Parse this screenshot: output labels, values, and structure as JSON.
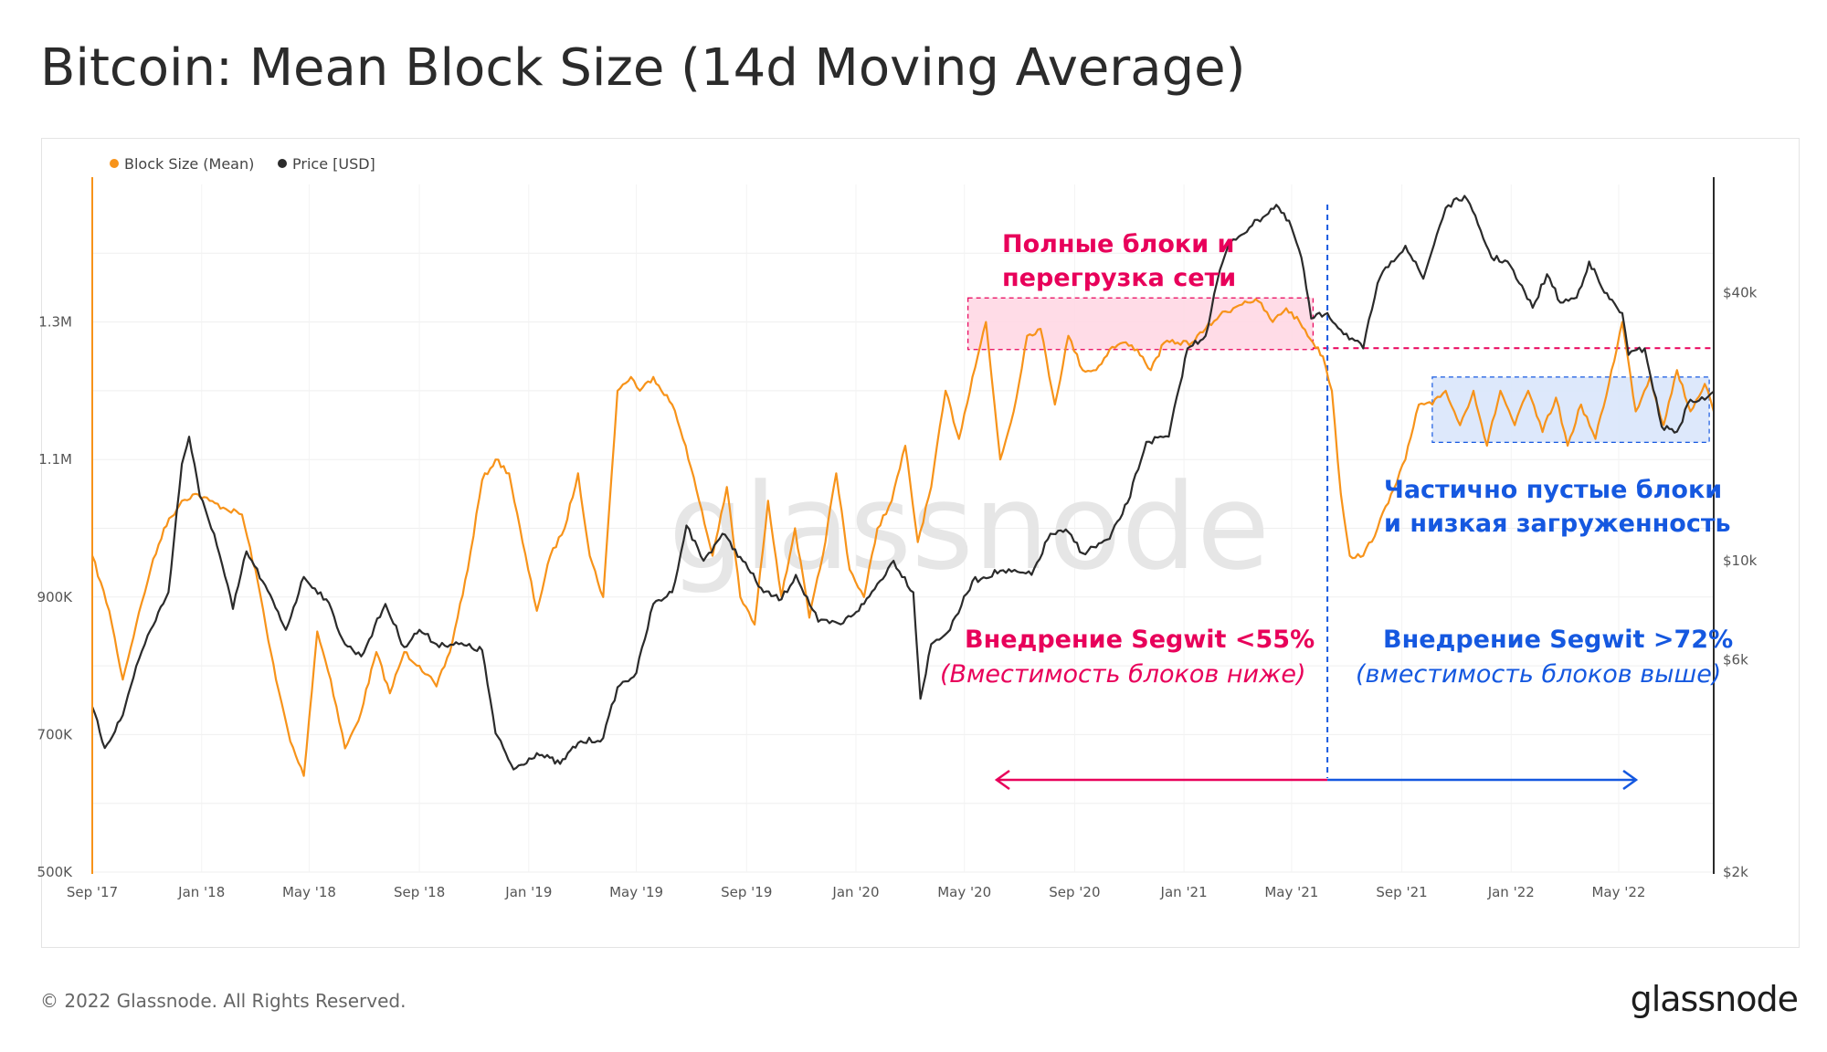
{
  "title": "Bitcoin: Mean Block Size (14d Moving Average)",
  "footer": {
    "copyright": "© 2022 Glassnode. All Rights Reserved.",
    "logo": "glassnode"
  },
  "watermark": "glassnode",
  "colors": {
    "block_size": "#f7931a",
    "price": "#2b2b2b",
    "pink": "#e8005a",
    "blue": "#1558e0",
    "pink_fill": "#ffd6e3",
    "blue_fill": "#d9e6fb"
  },
  "chart_data": {
    "type": "line",
    "legend": [
      "Block Size (Mean)",
      "Price [USD]"
    ],
    "legend_position": "top-left",
    "grid": true,
    "x_ticks": [
      "Sep '17",
      "Jan '18",
      "May '18",
      "Sep '18",
      "Jan '19",
      "May '19",
      "Sep '19",
      "Jan '20",
      "May '20",
      "Sep '20",
      "Jan '21",
      "May '21",
      "Sep '21",
      "Jan '22",
      "May '22"
    ],
    "x_range": [
      "2017-09-01",
      "2022-08-15"
    ],
    "y_left": {
      "ticks": [
        "500K",
        "700K",
        "900K",
        "1.1M",
        "1.3M"
      ],
      "values": [
        500000,
        700000,
        900000,
        1100000,
        1300000
      ],
      "range": [
        500000,
        1500000
      ]
    },
    "y_right": {
      "scale": "log",
      "ticks": [
        "$2k",
        "$6k",
        "$10k",
        "$40k"
      ],
      "values": [
        2000,
        6000,
        10000,
        40000
      ],
      "range": [
        2000,
        70000
      ]
    },
    "series": [
      {
        "name": "Block Size (Mean)",
        "axis": "left",
        "x": [
          "2017-09-01",
          "2017-09-20",
          "2017-10-05",
          "2017-10-20",
          "2017-11-05",
          "2017-11-20",
          "2017-12-10",
          "2017-12-25",
          "2018-01-10",
          "2018-01-25",
          "2018-02-15",
          "2018-03-05",
          "2018-03-25",
          "2018-04-10",
          "2018-04-25",
          "2018-05-10",
          "2018-05-25",
          "2018-06-10",
          "2018-06-25",
          "2018-07-15",
          "2018-07-30",
          "2018-08-15",
          "2018-09-01",
          "2018-09-20",
          "2018-10-05",
          "2018-10-25",
          "2018-11-10",
          "2018-11-25",
          "2018-12-10",
          "2018-12-25",
          "2019-01-10",
          "2019-01-25",
          "2019-02-10",
          "2019-02-25",
          "2019-03-10",
          "2019-03-25",
          "2019-04-10",
          "2019-04-25",
          "2019-05-05",
          "2019-05-20",
          "2019-06-10",
          "2019-06-25",
          "2019-07-10",
          "2019-07-25",
          "2019-08-10",
          "2019-08-25",
          "2019-09-10",
          "2019-09-25",
          "2019-10-10",
          "2019-10-25",
          "2019-11-10",
          "2019-11-25",
          "2019-12-10",
          "2019-12-25",
          "2020-01-10",
          "2020-01-25",
          "2020-02-10",
          "2020-02-25",
          "2020-03-10",
          "2020-03-25",
          "2020-04-10",
          "2020-04-25",
          "2020-05-10",
          "2020-05-25",
          "2020-06-10",
          "2020-06-25",
          "2020-07-10",
          "2020-07-25",
          "2020-08-10",
          "2020-08-25",
          "2020-09-10",
          "2020-09-25",
          "2020-10-10",
          "2020-10-25",
          "2020-11-10",
          "2020-11-25",
          "2020-12-10",
          "2020-12-25",
          "2021-01-10",
          "2021-01-25",
          "2021-02-10",
          "2021-02-25",
          "2021-03-10",
          "2021-03-25",
          "2021-04-10",
          "2021-04-25",
          "2021-05-10",
          "2021-05-25",
          "2021-06-05",
          "2021-06-15",
          "2021-06-25",
          "2021-07-05",
          "2021-07-20",
          "2021-08-05",
          "2021-08-20",
          "2021-09-05",
          "2021-09-20",
          "2021-10-05",
          "2021-10-20",
          "2021-11-05",
          "2021-11-20",
          "2021-12-05",
          "2021-12-20",
          "2022-01-05",
          "2022-01-20",
          "2022-02-05",
          "2022-02-20",
          "2022-03-05",
          "2022-03-20",
          "2022-04-05",
          "2022-04-20",
          "2022-05-05",
          "2022-05-20",
          "2022-06-05",
          "2022-06-20",
          "2022-07-05",
          "2022-07-20",
          "2022-08-05",
          "2022-08-15"
        ],
        "values": [
          960000,
          880000,
          780000,
          860000,
          940000,
          1000000,
          1040000,
          1050000,
          1040000,
          1030000,
          1020000,
          920000,
          780000,
          690000,
          640000,
          850000,
          780000,
          680000,
          720000,
          820000,
          760000,
          820000,
          800000,
          770000,
          820000,
          940000,
          1070000,
          1100000,
          1080000,
          980000,
          880000,
          960000,
          1000000,
          1080000,
          960000,
          900000,
          1200000,
          1220000,
          1200000,
          1220000,
          1180000,
          1120000,
          1040000,
          960000,
          1060000,
          900000,
          860000,
          1040000,
          900000,
          1000000,
          870000,
          960000,
          1080000,
          940000,
          900000,
          1000000,
          1040000,
          1120000,
          980000,
          1060000,
          1200000,
          1130000,
          1220000,
          1300000,
          1100000,
          1170000,
          1280000,
          1290000,
          1180000,
          1280000,
          1230000,
          1230000,
          1260000,
          1270000,
          1260000,
          1230000,
          1270000,
          1270000,
          1270000,
          1290000,
          1310000,
          1320000,
          1330000,
          1330000,
          1300000,
          1320000,
          1300000,
          1270000,
          1250000,
          1200000,
          1050000,
          960000,
          960000,
          1000000,
          1050000,
          1100000,
          1180000,
          1180000,
          1200000,
          1150000,
          1200000,
          1120000,
          1200000,
          1150000,
          1200000,
          1140000,
          1190000,
          1120000,
          1180000,
          1130000,
          1210000,
          1300000,
          1170000,
          1220000,
          1150000,
          1230000,
          1170000,
          1210000,
          1170000
        ]
      },
      {
        "name": "Price [USD]",
        "axis": "right",
        "x": [
          "2017-09-01",
          "2017-09-15",
          "2017-10-05",
          "2017-10-20",
          "2017-11-05",
          "2017-11-25",
          "2017-12-10",
          "2017-12-18",
          "2017-12-30",
          "2018-01-15",
          "2018-02-05",
          "2018-02-20",
          "2018-03-10",
          "2018-04-05",
          "2018-04-25",
          "2018-05-20",
          "2018-06-10",
          "2018-06-28",
          "2018-07-25",
          "2018-08-15",
          "2018-09-01",
          "2018-09-20",
          "2018-10-15",
          "2018-11-10",
          "2018-11-25",
          "2018-12-15",
          "2019-01-10",
          "2019-02-05",
          "2019-02-25",
          "2019-03-25",
          "2019-04-10",
          "2019-05-01",
          "2019-05-20",
          "2019-06-10",
          "2019-06-26",
          "2019-07-15",
          "2019-08-05",
          "2019-08-25",
          "2019-09-20",
          "2019-10-10",
          "2019-10-26",
          "2019-11-20",
          "2019-12-15",
          "2020-01-10",
          "2020-02-12",
          "2020-03-05",
          "2020-03-13",
          "2020-03-25",
          "2020-04-15",
          "2020-05-10",
          "2020-06-10",
          "2020-07-15",
          "2020-08-05",
          "2020-08-25",
          "2020-09-10",
          "2020-10-10",
          "2020-10-30",
          "2020-11-20",
          "2020-12-15",
          "2021-01-05",
          "2021-01-25",
          "2021-02-10",
          "2021-02-22",
          "2021-03-15",
          "2021-04-14",
          "2021-05-01",
          "2021-05-12",
          "2021-05-23",
          "2021-06-10",
          "2021-06-25",
          "2021-07-20",
          "2021-08-05",
          "2021-08-20",
          "2021-09-05",
          "2021-09-25",
          "2021-10-10",
          "2021-10-20",
          "2021-11-10",
          "2021-11-25",
          "2021-12-10",
          "2021-12-28",
          "2022-01-10",
          "2022-01-25",
          "2022-02-10",
          "2022-02-25",
          "2022-03-15",
          "2022-03-29",
          "2022-04-15",
          "2022-05-05",
          "2022-05-12",
          "2022-05-30",
          "2022-06-18",
          "2022-07-05",
          "2022-07-20",
          "2022-08-05",
          "2022-08-15"
        ],
        "values": [
          4700,
          3800,
          4500,
          5800,
          7000,
          8500,
          16500,
          19000,
          14000,
          11500,
          7800,
          10500,
          9000,
          7000,
          9200,
          8200,
          6500,
          6100,
          8000,
          6400,
          7000,
          6500,
          6500,
          6300,
          4100,
          3400,
          3700,
          3500,
          3900,
          4000,
          5200,
          5600,
          8000,
          8500,
          12000,
          10000,
          11500,
          10200,
          8500,
          8200,
          9300,
          7300,
          7200,
          8000,
          10000,
          8500,
          4900,
          6500,
          7000,
          9000,
          9500,
          9300,
          11500,
          11600,
          10400,
          11200,
          13500,
          18500,
          19000,
          30000,
          32000,
          45000,
          52000,
          56000,
          63000,
          56000,
          48000,
          35000,
          36000,
          33000,
          30000,
          42000,
          47000,
          51000,
          43000,
          54000,
          62000,
          66000,
          57000,
          48000,
          47000,
          42000,
          37000,
          44000,
          38000,
          39000,
          47000,
          40000,
          36000,
          29000,
          30000,
          20000,
          19500,
          23000,
          23000,
          24000
        ]
      }
    ],
    "annotations": {
      "pink_title_1": "Полные блоки и",
      "pink_title_2": "перегрузка сети",
      "blue_title_1": "Частично пустые блоки",
      "blue_title_2": "и низкая загруженность",
      "segwit_left_1": "Внедрение Segwit <55%",
      "segwit_left_2": "(Вместимость блоков ниже)",
      "segwit_right_1": "Внедрение Segwit >72%",
      "segwit_right_2": "(вместимость блоков выше)",
      "pink_band": {
        "x0": "2020-05-05",
        "x1": "2021-05-25",
        "y0": 1260000,
        "y1": 1335000
      },
      "blue_band": {
        "x0": "2021-10-05",
        "x1": "2022-08-10",
        "y0": 1125000,
        "y1": 1220000
      },
      "pink_hline": {
        "x0": "2021-05-25",
        "x1": "2022-08-15",
        "y": 1262000
      },
      "divider_date": "2021-06-10"
    }
  }
}
